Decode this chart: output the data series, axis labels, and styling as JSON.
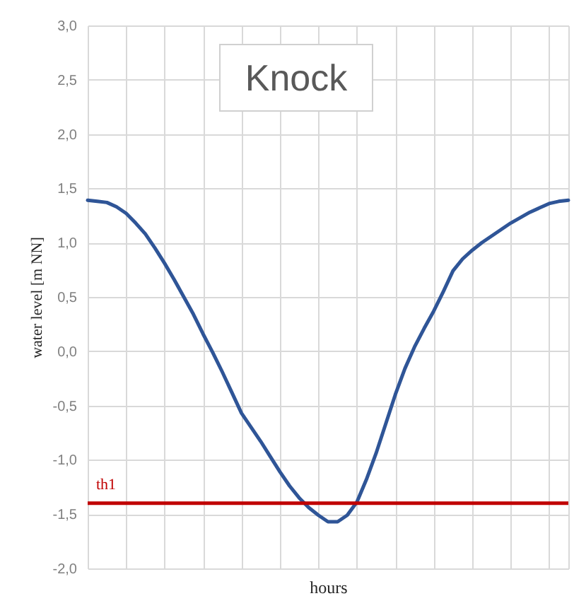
{
  "chart_data": {
    "type": "line",
    "title": "Knock",
    "xlabel": "hours",
    "ylabel": "water level [m NN]",
    "categories": [
      null,
      null,
      null,
      null,
      null,
      null,
      null,
      null,
      null,
      null,
      null,
      null,
      null,
      null,
      null,
      null,
      null,
      null,
      null,
      null,
      null,
      null,
      null,
      null,
      null,
      null,
      null,
      null,
      null,
      null,
      null,
      null,
      null,
      null,
      null,
      null,
      null,
      null,
      null,
      null,
      null,
      null,
      null,
      null,
      null,
      null,
      null,
      null,
      null,
      null,
      null
    ],
    "series": [
      {
        "color": "#2f5597",
        "values": [
          1.39,
          1.38,
          1.37,
          1.33,
          1.27,
          1.18,
          1.08,
          0.95,
          0.81,
          0.66,
          0.5,
          0.34,
          0.16,
          -0.01,
          -0.19,
          -0.38,
          -0.57,
          -0.7,
          -0.83,
          -0.97,
          -1.11,
          -1.24,
          -1.35,
          -1.44,
          -1.51,
          -1.57,
          -1.57,
          -1.51,
          -1.39,
          -1.18,
          -0.94,
          -0.67,
          -0.4,
          -0.16,
          0.04,
          0.21,
          0.37,
          0.55,
          0.74,
          0.85,
          0.93,
          1,
          1.06,
          1.12,
          1.18,
          1.23,
          1.28,
          1.32,
          1.36,
          1.38,
          1.39
        ]
      }
    ],
    "ylim": [
      -2,
      3
    ],
    "yticks": [
      {
        "value": -2,
        "label": "-2,0"
      },
      {
        "value": -1.5,
        "label": "-1,5"
      },
      {
        "value": -1,
        "label": "-1,0"
      },
      {
        "value": -0.5,
        "label": "-0,5"
      },
      {
        "value": 0,
        "label": "0,0"
      },
      {
        "value": 0.5,
        "label": "0,5"
      },
      {
        "value": 1,
        "label": "1,0"
      },
      {
        "value": 1.5,
        "label": "1,5"
      },
      {
        "value": 2,
        "label": "2,0"
      },
      {
        "value": 2.5,
        "label": "2,5"
      },
      {
        "value": 3,
        "label": "3,0"
      }
    ],
    "tick_labels": "y",
    "grid": true,
    "line_style": "solid",
    "marker": "none",
    "ref_lines": [
      {
        "axis": "y",
        "value": -1.4,
        "label": "th1",
        "color": "#c00000",
        "line_style": "solid"
      }
    ]
  }
}
